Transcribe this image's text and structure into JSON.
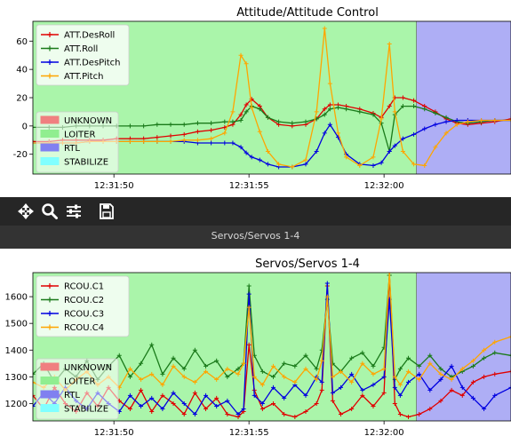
{
  "toolbar": {
    "pan_label": "pan",
    "zoom_label": "zoom",
    "configure_label": "configure",
    "save_label": "save"
  },
  "status": {
    "text": "Servos/Servos 1-4"
  },
  "colors": {
    "loiter": "#aaf5aa",
    "rtl": "#aeaef5",
    "unknown": "#f08080",
    "stabilize": "#80ffff",
    "series_red": "#e00000",
    "series_green": "#1a7a1a",
    "series_blue": "#0000e0",
    "series_orange": "#ffa500"
  },
  "chart_data": [
    {
      "type": "line",
      "title": "Attitude/Attitude Control",
      "xlabel": "",
      "ylabel": "",
      "xlim": [
        "12:31:45.9",
        "12:32:03.6"
      ],
      "ylim": [
        -34,
        74
      ],
      "xticks": [
        {
          "t": 48.9,
          "label": "12:31:50"
        },
        {
          "t": 53.9,
          "label": "12:31:55"
        },
        {
          "t": 58.9,
          "label": "12:32:00"
        }
      ],
      "yticks": [
        -20,
        0,
        20,
        40,
        60
      ],
      "grid": false,
      "legend_placement": "upper-left",
      "modes": [
        {
          "name": "UNKNOWN",
          "color": "#f08080"
        },
        {
          "name": "LOITER",
          "color": "#90ee90"
        },
        {
          "name": "RTL",
          "color": "#8080f0"
        },
        {
          "name": "STABILIZE",
          "color": "#80ffff"
        }
      ],
      "mode_spans": [
        {
          "mode": "LOITER",
          "start": "12:31:45.9",
          "end": "12:32:00.1"
        },
        {
          "mode": "RTL",
          "start": "12:32:00.1",
          "end": "12:32:03.6"
        }
      ],
      "x_seconds_after_12_31": [
        45.9,
        46.5,
        47,
        47.5,
        48,
        48.5,
        49,
        49.5,
        50,
        50.5,
        51,
        51.5,
        52,
        52.5,
        53,
        53.3,
        53.6,
        53.8,
        54.0,
        54.3,
        54.6,
        55,
        55.5,
        56,
        56.4,
        56.7,
        56.9,
        57.2,
        57.5,
        58,
        58.5,
        58.8,
        59.1,
        59.3,
        59.6,
        60,
        60.4,
        60.8,
        61.2,
        61.6,
        62,
        62.5,
        63,
        63.6
      ],
      "series": [
        {
          "name": "ATT.DesRoll",
          "color": "#e00000",
          "values": [
            -11,
            -11,
            -10,
            -10,
            -10,
            -10,
            -9,
            -9,
            -9,
            -8,
            -7,
            -6,
            -4,
            -3,
            -1,
            1,
            8,
            15,
            19,
            14,
            6,
            1,
            0,
            1,
            5,
            12,
            15,
            15,
            14,
            12,
            9,
            6,
            14,
            20,
            20,
            18,
            14,
            10,
            5,
            2,
            1,
            2,
            3,
            5
          ]
        },
        {
          "name": "ATT.Roll",
          "color": "#1a7a1a",
          "values": [
            -1,
            -1,
            -1,
            0,
            0,
            0,
            0,
            0,
            0,
            1,
            1,
            1,
            2,
            2,
            3,
            3,
            4,
            10,
            14,
            12,
            6,
            3,
            2,
            3,
            5,
            8,
            12,
            13,
            12,
            10,
            8,
            2,
            -18,
            8,
            14,
            14,
            12,
            9,
            6,
            3,
            2,
            3,
            4,
            4
          ]
        },
        {
          "name": "ATT.DesPitch",
          "color": "#0000e0",
          "values": [
            -12,
            -12,
            -12,
            -12,
            -11,
            -11,
            -11,
            -11,
            -11,
            -11,
            -11,
            -11,
            -12,
            -12,
            -12,
            -12,
            -15,
            -19,
            -22,
            -24,
            -27,
            -29,
            -29,
            -27,
            -18,
            -5,
            1,
            -8,
            -20,
            -27,
            -28,
            -26,
            -18,
            -14,
            -9,
            -6,
            -2,
            1,
            3,
            4,
            4,
            4,
            4,
            4
          ]
        },
        {
          "name": "ATT.Pitch",
          "color": "#ffa500",
          "values": [
            -12,
            -12,
            -12,
            -12,
            -11,
            -11,
            -11,
            -11,
            -11,
            -11,
            -11,
            -10,
            -10,
            -9,
            -5,
            10,
            50,
            44,
            13,
            -4,
            -18,
            -27,
            -29,
            -24,
            10,
            69,
            30,
            -5,
            -22,
            -28,
            -22,
            5,
            58,
            10,
            -18,
            -27,
            -28,
            -15,
            -5,
            1,
            3,
            4,
            4,
            4
          ]
        }
      ]
    },
    {
      "type": "line",
      "title": "Servos/Servos 1-4",
      "xlabel": "",
      "ylabel": "",
      "xlim": [
        "12:31:45.9",
        "12:32:03.6"
      ],
      "ylim": [
        1135,
        1690
      ],
      "xticks": [
        {
          "t": 48.9,
          "label": "12:31:50"
        },
        {
          "t": 53.9,
          "label": "12:31:55"
        },
        {
          "t": 58.9,
          "label": "12:32:00"
        }
      ],
      "yticks": [
        1200,
        1300,
        1400,
        1500,
        1600
      ],
      "grid": false,
      "legend_placement": "upper-left",
      "modes": [
        {
          "name": "UNKNOWN",
          "color": "#f08080"
        },
        {
          "name": "LOITER",
          "color": "#90ee90"
        },
        {
          "name": "RTL",
          "color": "#8080f0"
        },
        {
          "name": "STABILIZE",
          "color": "#80ffff"
        }
      ],
      "mode_spans": [
        {
          "mode": "LOITER",
          "start": "12:31:45.9",
          "end": "12:32:00.1"
        },
        {
          "mode": "RTL",
          "start": "12:32:00.1",
          "end": "12:32:03.6"
        }
      ],
      "x_seconds_after_12_31": [
        45.9,
        46.3,
        46.7,
        47.1,
        47.5,
        47.9,
        48.3,
        48.7,
        49.1,
        49.5,
        49.9,
        50.3,
        50.7,
        51.1,
        51.5,
        51.9,
        52.3,
        52.7,
        53.1,
        53.5,
        53.7,
        53.9,
        54.1,
        54.4,
        54.8,
        55.2,
        55.6,
        56,
        56.4,
        56.6,
        56.8,
        57,
        57.3,
        57.7,
        58.1,
        58.5,
        58.9,
        59.1,
        59.3,
        59.5,
        59.8,
        60.2,
        60.6,
        61,
        61.4,
        61.8,
        62.2,
        62.6,
        63,
        63.6
      ],
      "series": [
        {
          "name": "RCOU.C1",
          "color": "#e00000",
          "values": [
            1230,
            1180,
            1260,
            1200,
            1170,
            1240,
            1190,
            1260,
            1210,
            1180,
            1250,
            1170,
            1230,
            1200,
            1160,
            1240,
            1180,
            1220,
            1160,
            1150,
            1170,
            1420,
            1250,
            1180,
            1200,
            1160,
            1150,
            1170,
            1200,
            1250,
            1640,
            1210,
            1160,
            1180,
            1230,
            1190,
            1240,
            1680,
            1200,
            1160,
            1150,
            1160,
            1180,
            1210,
            1250,
            1230,
            1280,
            1300,
            1310,
            1320
          ]
        },
        {
          "name": "RCOU.C2",
          "color": "#1a7a1a",
          "values": [
            1310,
            1350,
            1280,
            1330,
            1300,
            1360,
            1290,
            1340,
            1380,
            1300,
            1350,
            1420,
            1310,
            1370,
            1330,
            1400,
            1340,
            1360,
            1300,
            1330,
            1350,
            1640,
            1380,
            1320,
            1300,
            1350,
            1340,
            1380,
            1330,
            1400,
            1590,
            1350,
            1320,
            1370,
            1390,
            1340,
            1410,
            1680,
            1290,
            1330,
            1370,
            1340,
            1380,
            1330,
            1300,
            1320,
            1340,
            1370,
            1390,
            1380
          ]
        },
        {
          "name": "RCOU.C3",
          "color": "#0000e0",
          "values": [
            1190,
            1240,
            1200,
            1260,
            1210,
            1180,
            1240,
            1200,
            1170,
            1230,
            1190,
            1220,
            1180,
            1240,
            1200,
            1160,
            1230,
            1190,
            1210,
            1160,
            1180,
            1610,
            1230,
            1200,
            1260,
            1220,
            1270,
            1230,
            1300,
            1280,
            1650,
            1240,
            1260,
            1310,
            1250,
            1270,
            1300,
            1590,
            1260,
            1230,
            1280,
            1310,
            1250,
            1290,
            1340,
            1260,
            1220,
            1180,
            1230,
            1260
          ]
        },
        {
          "name": "RCOU.C4",
          "color": "#ffa500",
          "values": [
            1280,
            1260,
            1300,
            1250,
            1290,
            1320,
            1270,
            1300,
            1260,
            1330,
            1290,
            1310,
            1270,
            1340,
            1300,
            1280,
            1320,
            1290,
            1330,
            1310,
            1350,
            1560,
            1300,
            1270,
            1340,
            1300,
            1280,
            1330,
            1290,
            1360,
            1600,
            1300,
            1320,
            1280,
            1350,
            1310,
            1330,
            1690,
            1300,
            1270,
            1320,
            1290,
            1350,
            1310,
            1290,
            1330,
            1360,
            1400,
            1430,
            1450
          ]
        }
      ]
    }
  ]
}
